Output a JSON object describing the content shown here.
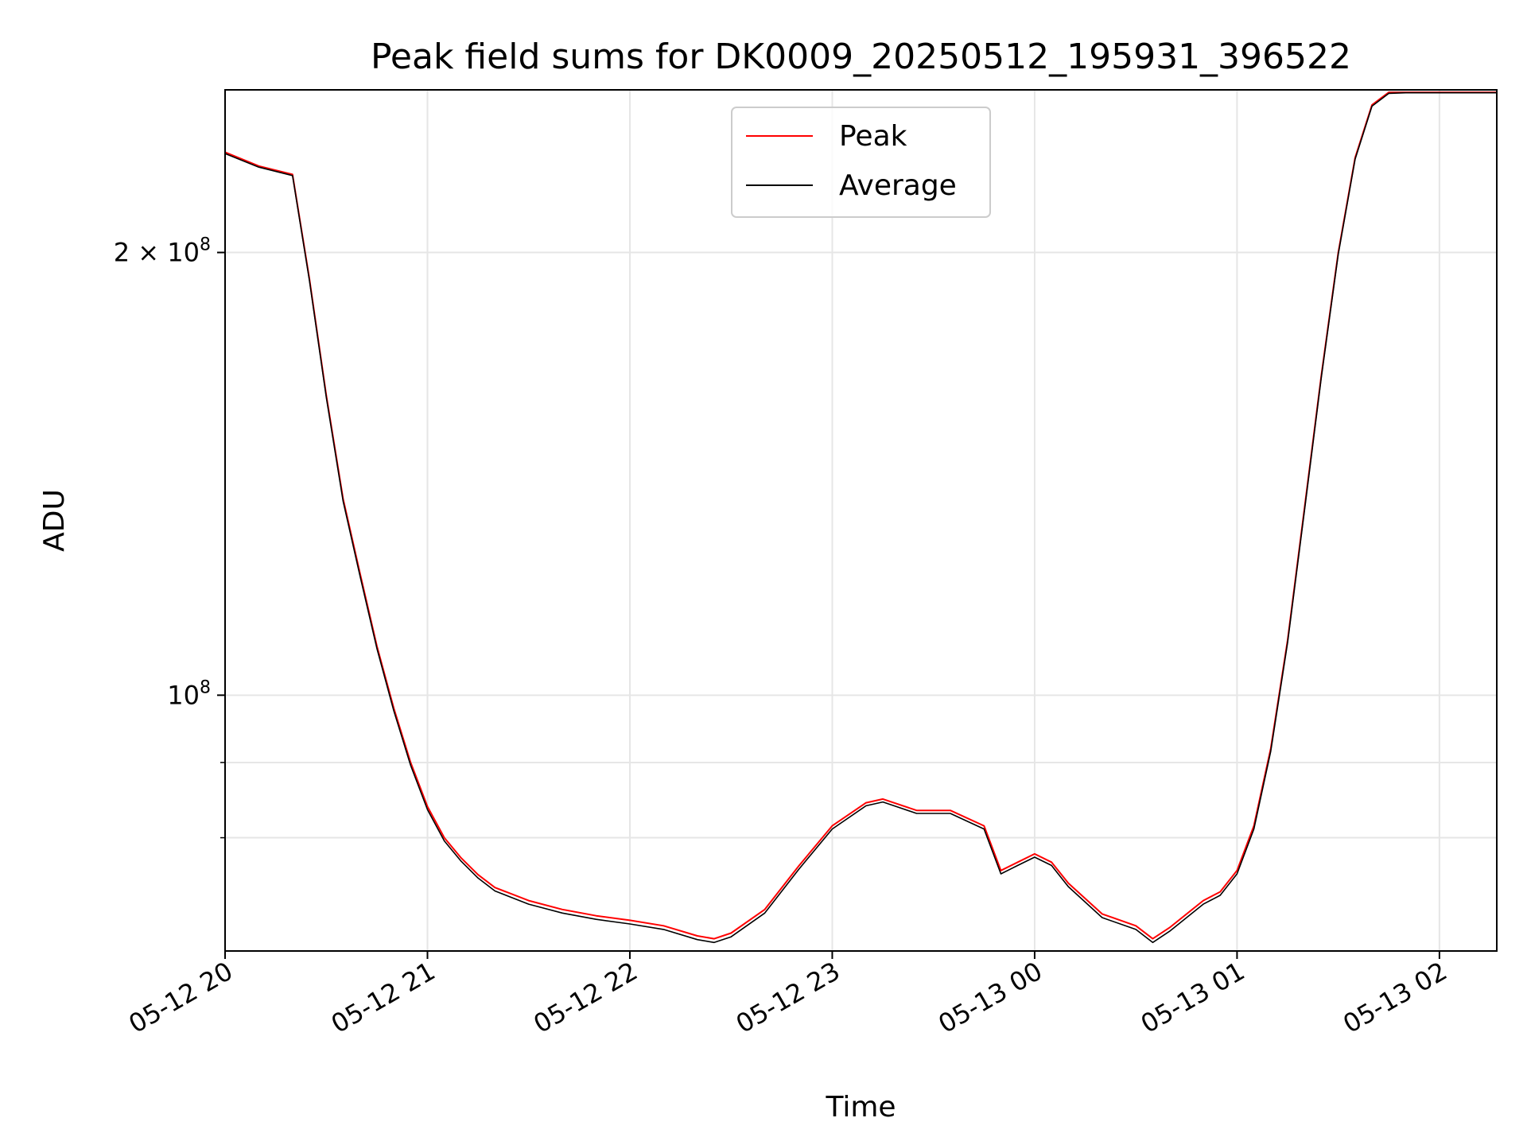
{
  "chart_data": {
    "type": "line",
    "title": "Peak field sums for DK0009_20250512_195931_396522",
    "xlabel": "Time",
    "ylabel": "ADU",
    "x_axis": "datetime",
    "xlim": [
      "2025-05-12 20:00",
      "2025-05-13 02:17"
    ],
    "ylim": [
      67000000,
      258000000
    ],
    "yscale": "log",
    "grid": true,
    "legend_position": "top-center",
    "xtick_labels": [
      "05-12 20",
      "05-12 21",
      "05-12 22",
      "05-12 23",
      "05-13 00",
      "05-13 01",
      "05-13 02"
    ],
    "xtick_values": [
      "2025-05-12 20:00",
      "2025-05-12 21:00",
      "2025-05-12 22:00",
      "2025-05-12 23:00",
      "2025-05-13 00:00",
      "2025-05-13 01:00",
      "2025-05-13 02:00"
    ],
    "ytick_labels": [
      {
        "value": 200000000,
        "mantissa": "2 × 10",
        "exponent": "8"
      },
      {
        "value": 100000000,
        "mantissa": "10",
        "exponent": "8"
      }
    ],
    "minor_yticks": [
      80000000,
      90000000
    ],
    "series": [
      {
        "name": "Peak",
        "color": "#ff0000",
        "x": [
          "2025-05-12 20:00",
          "2025-05-12 20:10",
          "2025-05-12 20:20",
          "2025-05-12 20:25",
          "2025-05-12 20:30",
          "2025-05-12 20:35",
          "2025-05-12 20:40",
          "2025-05-12 20:45",
          "2025-05-12 20:50",
          "2025-05-12 20:55",
          "2025-05-12 21:00",
          "2025-05-12 21:05",
          "2025-05-12 21:10",
          "2025-05-12 21:15",
          "2025-05-12 21:20",
          "2025-05-12 21:30",
          "2025-05-12 21:40",
          "2025-05-12 21:50",
          "2025-05-12 22:00",
          "2025-05-12 22:10",
          "2025-05-12 22:20",
          "2025-05-12 22:25",
          "2025-05-12 22:30",
          "2025-05-12 22:40",
          "2025-05-12 22:50",
          "2025-05-12 23:00",
          "2025-05-12 23:10",
          "2025-05-12 23:15",
          "2025-05-12 23:25",
          "2025-05-12 23:35",
          "2025-05-12 23:45",
          "2025-05-12 23:50",
          "2025-05-12 23:55",
          "2025-05-13 00:00",
          "2025-05-13 00:05",
          "2025-05-13 00:10",
          "2025-05-13 00:20",
          "2025-05-13 00:30",
          "2025-05-13 00:35",
          "2025-05-13 00:40",
          "2025-05-13 00:50",
          "2025-05-13 00:55",
          "2025-05-13 01:00",
          "2025-05-13 01:05",
          "2025-05-13 01:10",
          "2025-05-13 01:15",
          "2025-05-13 01:20",
          "2025-05-13 01:25",
          "2025-05-13 01:30",
          "2025-05-13 01:35",
          "2025-05-13 01:40",
          "2025-05-13 01:45",
          "2025-05-13 01:50",
          "2025-05-13 01:55",
          "2025-05-13 02:00",
          "2025-05-13 02:05",
          "2025-05-13 02:17"
        ],
        "values": [
          234000000,
          229000000,
          226000000,
          192000000,
          160000000,
          136000000,
          121000000,
          108000000,
          98000000,
          90000000,
          84000000,
          80000000,
          77500000,
          75500000,
          74000000,
          72500000,
          71500000,
          70800000,
          70300000,
          69700000,
          68600000,
          68300000,
          68900000,
          71500000,
          76500000,
          81500000,
          84500000,
          85000000,
          83500000,
          83500000,
          81500000,
          76000000,
          77000000,
          78000000,
          77000000,
          74500000,
          71000000,
          69700000,
          68300000,
          69500000,
          72500000,
          73500000,
          76000000,
          81500000,
          92000000,
          109000000,
          134000000,
          165000000,
          200000000,
          232000000,
          252000000,
          257000000,
          257000000,
          257000000,
          257000000,
          257000000,
          257000000
        ]
      },
      {
        "name": "Average",
        "color": "#000000",
        "x": [
          "2025-05-12 20:00",
          "2025-05-12 20:10",
          "2025-05-12 20:20",
          "2025-05-12 20:25",
          "2025-05-12 20:30",
          "2025-05-12 20:35",
          "2025-05-12 20:40",
          "2025-05-12 20:45",
          "2025-05-12 20:50",
          "2025-05-12 20:55",
          "2025-05-12 21:00",
          "2025-05-12 21:05",
          "2025-05-12 21:10",
          "2025-05-12 21:15",
          "2025-05-12 21:20",
          "2025-05-12 21:30",
          "2025-05-12 21:40",
          "2025-05-12 21:50",
          "2025-05-12 22:00",
          "2025-05-12 22:10",
          "2025-05-12 22:20",
          "2025-05-12 22:25",
          "2025-05-12 22:30",
          "2025-05-12 22:40",
          "2025-05-12 22:50",
          "2025-05-12 23:00",
          "2025-05-12 23:10",
          "2025-05-12 23:15",
          "2025-05-12 23:25",
          "2025-05-12 23:35",
          "2025-05-12 23:45",
          "2025-05-12 23:50",
          "2025-05-12 23:55",
          "2025-05-13 00:00",
          "2025-05-13 00:05",
          "2025-05-13 00:10",
          "2025-05-13 00:20",
          "2025-05-13 00:30",
          "2025-05-13 00:35",
          "2025-05-13 00:40",
          "2025-05-13 00:50",
          "2025-05-13 00:55",
          "2025-05-13 01:00",
          "2025-05-13 01:05",
          "2025-05-13 01:10",
          "2025-05-13 01:15",
          "2025-05-13 01:20",
          "2025-05-13 01:25",
          "2025-05-13 01:30",
          "2025-05-13 01:35",
          "2025-05-13 01:40",
          "2025-05-13 01:45",
          "2025-05-13 01:50",
          "2025-05-13 01:55",
          "2025-05-13 02:00",
          "2025-05-13 02:05",
          "2025-05-13 02:17"
        ],
        "values": [
          233500000,
          228600000,
          225600000,
          191500000,
          159500000,
          135500000,
          120500000,
          107600000,
          97600000,
          89600000,
          83600000,
          79600000,
          77100000,
          75100000,
          73600000,
          72100000,
          71100000,
          70400000,
          69900000,
          69300000,
          68200000,
          67900000,
          68500000,
          71100000,
          76100000,
          81100000,
          84100000,
          84600000,
          83100000,
          83100000,
          81100000,
          75600000,
          76600000,
          77600000,
          76600000,
          74100000,
          70600000,
          69300000,
          67900000,
          69100000,
          72100000,
          73100000,
          75600000,
          81100000,
          91600000,
          108600000,
          133500000,
          164500000,
          199500000,
          231500000,
          251500000,
          256600000,
          256800000,
          256800000,
          256800000,
          256800000,
          256800000
        ]
      }
    ]
  }
}
